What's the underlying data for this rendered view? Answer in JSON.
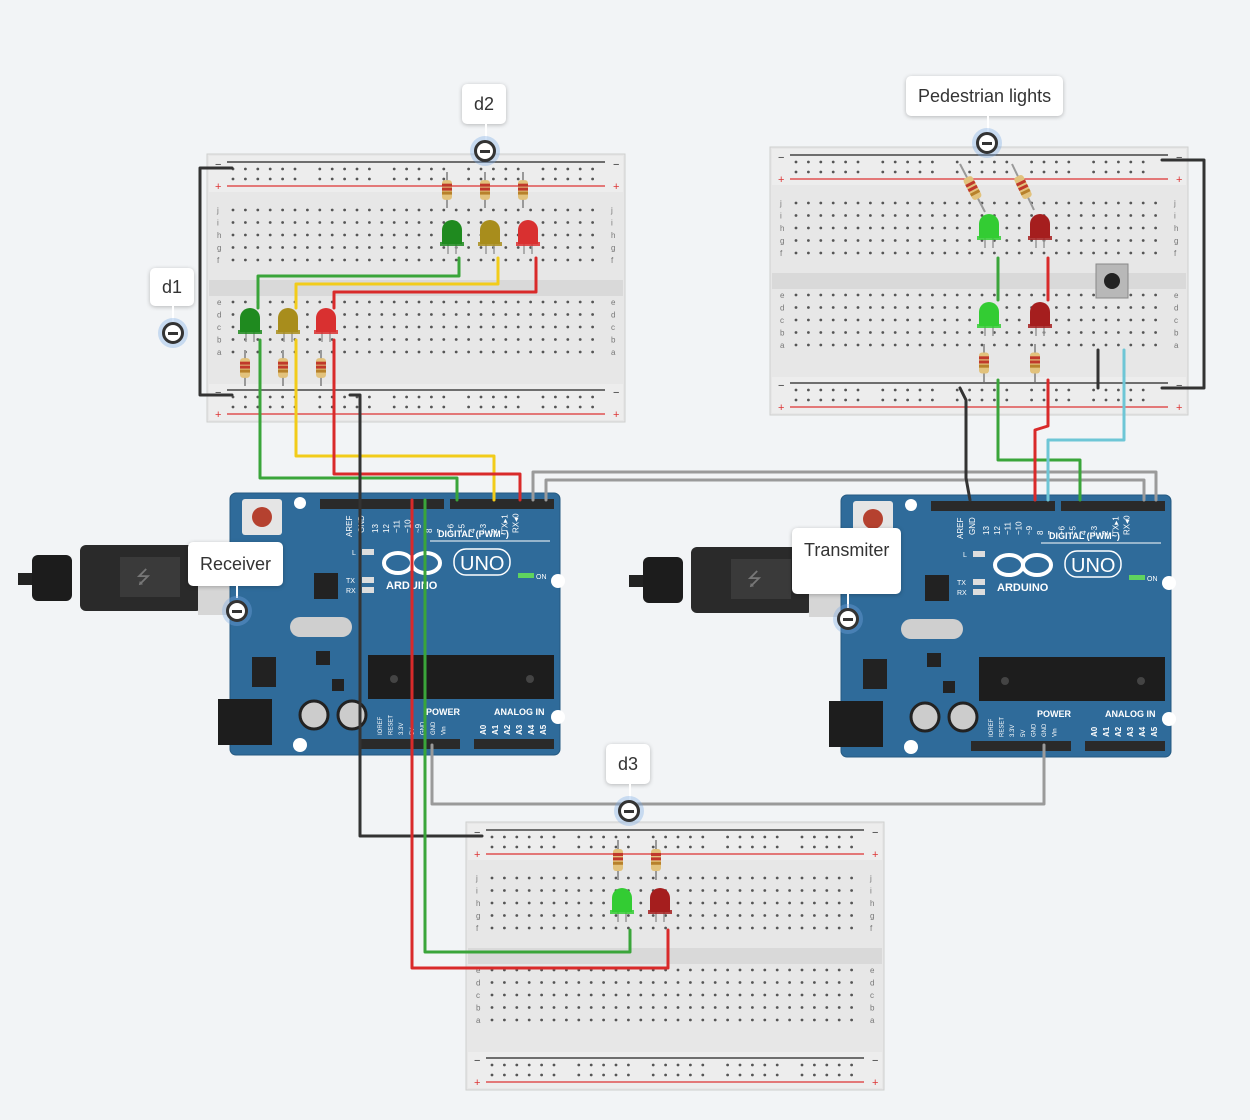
{
  "annotations": {
    "d1": "d1",
    "d2": "d2",
    "d3": "d3",
    "pedestrian": "Pedestrian lights",
    "receiver": "Receiver",
    "transmitter": "Transmiter"
  },
  "arduino": {
    "brand": "ARDUINO",
    "model": "UNO",
    "digital_label": "DIGITAL (PWM~)",
    "power_label": "POWER",
    "analog_label": "ANALOG IN",
    "on_label": "ON",
    "tx": "TX",
    "rx": "RX",
    "l": "L",
    "aref": "AREF",
    "gnd": "GND",
    "pins_digital": [
      "13",
      "12",
      "~11",
      "~10",
      "~9",
      "8",
      "7",
      "~6",
      "~5",
      "4",
      "~3",
      "2",
      "TX▸1",
      "RX◂0"
    ],
    "pins_power": [
      "IOREF",
      "RESET",
      "3.3V",
      "5V",
      "GND",
      "GND",
      "Vin"
    ],
    "pins_analog": [
      "A0",
      "A1",
      "A2",
      "A3",
      "A4",
      "A5"
    ]
  },
  "breadboard": {
    "plus": "+",
    "minus": "−",
    "rows_top": [
      "j",
      "i",
      "h",
      "g",
      "f"
    ],
    "rows_bottom": [
      "e",
      "d",
      "c",
      "b",
      "a"
    ]
  },
  "colors": {
    "wire_green": "#3aa53a",
    "wire_yellow": "#f2cc1a",
    "wire_red": "#d92a2a",
    "wire_black": "#333333",
    "wire_gray": "#9a9a9a",
    "wire_cyan": "#6ec6d6",
    "led_green": "#1f8a1f",
    "led_yellow": "#a88d1c",
    "led_red": "#d93030",
    "led_brightgreen": "#33cc33",
    "led_darkred": "#a51e1e",
    "arduino_blue": "#2f6b9a"
  }
}
